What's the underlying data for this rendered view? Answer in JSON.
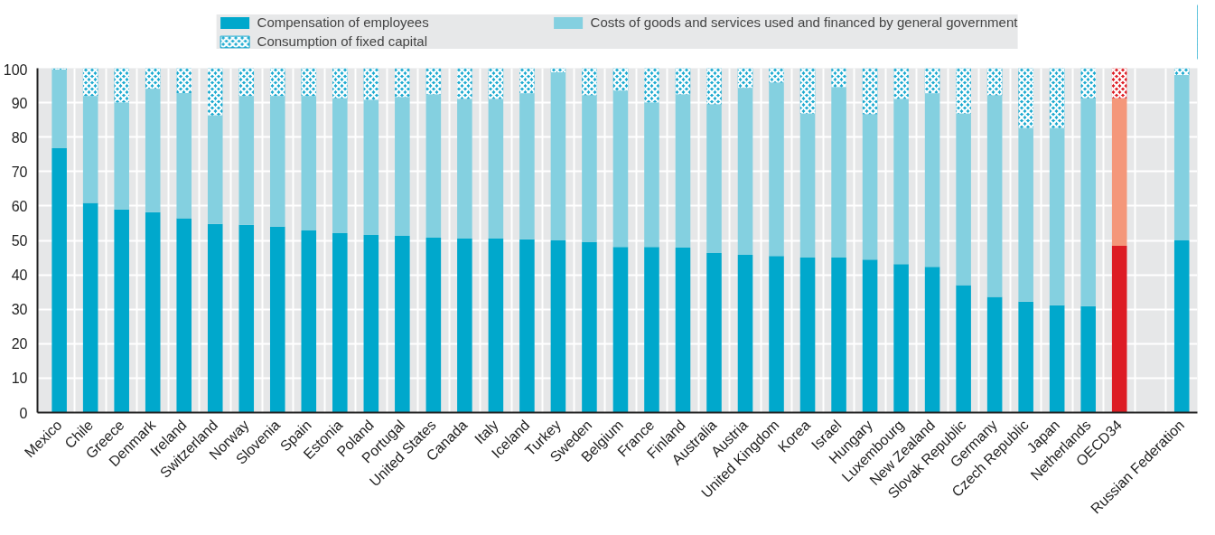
{
  "chart_data": {
    "type": "bar",
    "stacked": true,
    "categories": [
      "Mexico",
      "Chile",
      "Greece",
      "Denmark",
      "Ireland",
      "Switzerland",
      "Norway",
      "Slovenia",
      "Spain",
      "Estonia",
      "Poland",
      "Portugal",
      "United States",
      "Canada",
      "Italy",
      "Iceland",
      "Turkey",
      "Sweden",
      "Belgium",
      "France",
      "Finland",
      "Australia",
      "Austria",
      "United Kingdom",
      "Korea",
      "Israel",
      "Hungary",
      "Luxembourg",
      "New Zealand",
      "Slovak Republic",
      "Germany",
      "Czech Republic",
      "Japan",
      "Netherlands",
      "OECD34",
      null,
      "Russian Federation"
    ],
    "series": [
      {
        "name": "Compensation of employees",
        "color": "#00a8cc",
        "colors": [
          "#00a8cc",
          "#00a8cc",
          "#00a8cc",
          "#00a8cc",
          "#00a8cc",
          "#00a8cc",
          "#00a8cc",
          "#00a8cc",
          "#00a8cc",
          "#00a8cc",
          "#00a8cc",
          "#00a8cc",
          "#00a8cc",
          "#00a8cc",
          "#00a8cc",
          "#00a8cc",
          "#00a8cc",
          "#00a8cc",
          "#00a8cc",
          "#00a8cc",
          "#00a8cc",
          "#00a8cc",
          "#00a8cc",
          "#00a8cc",
          "#00a8cc",
          "#00a8cc",
          "#00a8cc",
          "#00a8cc",
          "#00a8cc",
          "#00a8cc",
          "#00a8cc",
          "#00a8cc",
          "#00a8cc",
          "#00a8cc",
          "#dd1c24",
          "#00a8cc",
          "#00a8cc"
        ],
        "values": [
          76.8,
          60.9,
          59.0,
          58.2,
          56.4,
          54.8,
          54.5,
          54.0,
          52.9,
          52.1,
          51.6,
          51.3,
          50.8,
          50.5,
          50.5,
          50.3,
          50.0,
          49.5,
          48.1,
          48.1,
          47.9,
          46.3,
          45.8,
          45.5,
          45.0,
          45.0,
          44.4,
          43.1,
          42.3,
          37.0,
          33.6,
          32.2,
          31.2,
          30.9,
          48.4,
          null,
          50.0
        ]
      },
      {
        "name": "Costs of goods and services used and financed by general government",
        "color": "#84d0e0",
        "colors": [
          "#84d0e0",
          "#84d0e0",
          "#84d0e0",
          "#84d0e0",
          "#84d0e0",
          "#84d0e0",
          "#84d0e0",
          "#84d0e0",
          "#84d0e0",
          "#84d0e0",
          "#84d0e0",
          "#84d0e0",
          "#84d0e0",
          "#84d0e0",
          "#84d0e0",
          "#84d0e0",
          "#84d0e0",
          "#84d0e0",
          "#84d0e0",
          "#84d0e0",
          "#84d0e0",
          "#84d0e0",
          "#84d0e0",
          "#84d0e0",
          "#84d0e0",
          "#84d0e0",
          "#84d0e0",
          "#84d0e0",
          "#84d0e0",
          "#84d0e0",
          "#84d0e0",
          "#84d0e0",
          "#84d0e0",
          "#84d0e0",
          "#f4977a",
          "#84d0e0",
          "#84d0e0"
        ],
        "values": [
          22.8,
          31.0,
          31.0,
          35.8,
          36.4,
          31.5,
          37.4,
          37.9,
          39.0,
          39.2,
          39.2,
          40.3,
          41.6,
          40.6,
          40.6,
          42.4,
          48.8,
          42.6,
          45.4,
          41.9,
          44.5,
          43.2,
          48.5,
          50.3,
          41.8,
          49.5,
          42.2,
          48.0,
          50.4,
          49.8,
          58.5,
          50.4,
          51.4,
          60.4,
          42.9,
          null,
          48.0
        ]
      },
      {
        "name": "Consumption of fixed capital",
        "color": "#1aa9cf",
        "colors": [
          "#1aa9cf",
          "#1aa9cf",
          "#1aa9cf",
          "#1aa9cf",
          "#1aa9cf",
          "#1aa9cf",
          "#1aa9cf",
          "#1aa9cf",
          "#1aa9cf",
          "#1aa9cf",
          "#1aa9cf",
          "#1aa9cf",
          "#1aa9cf",
          "#1aa9cf",
          "#1aa9cf",
          "#1aa9cf",
          "#1aa9cf",
          "#1aa9cf",
          "#1aa9cf",
          "#1aa9cf",
          "#1aa9cf",
          "#1aa9cf",
          "#1aa9cf",
          "#1aa9cf",
          "#1aa9cf",
          "#1aa9cf",
          "#1aa9cf",
          "#1aa9cf",
          "#1aa9cf",
          "#1aa9cf",
          "#1aa9cf",
          "#1aa9cf",
          "#1aa9cf",
          "#1aa9cf",
          "#dd1c24",
          "#1aa9cf",
          "#1aa9cf"
        ],
        "values": [
          0.4,
          8.1,
          10.0,
          6.0,
          7.2,
          13.7,
          8.1,
          8.1,
          8.1,
          8.7,
          9.2,
          8.4,
          7.6,
          8.9,
          8.9,
          7.3,
          1.2,
          7.9,
          6.5,
          10.0,
          7.6,
          10.5,
          5.7,
          4.2,
          13.2,
          5.5,
          13.4,
          8.9,
          7.3,
          13.2,
          7.9,
          17.4,
          17.4,
          8.7,
          8.7,
          null,
          2.0
        ]
      }
    ],
    "ylim": [
      0,
      100
    ],
    "yticks": [
      0,
      10,
      20,
      30,
      40,
      50,
      60,
      70,
      80,
      90,
      100
    ],
    "grid": true,
    "legend": "top"
  }
}
